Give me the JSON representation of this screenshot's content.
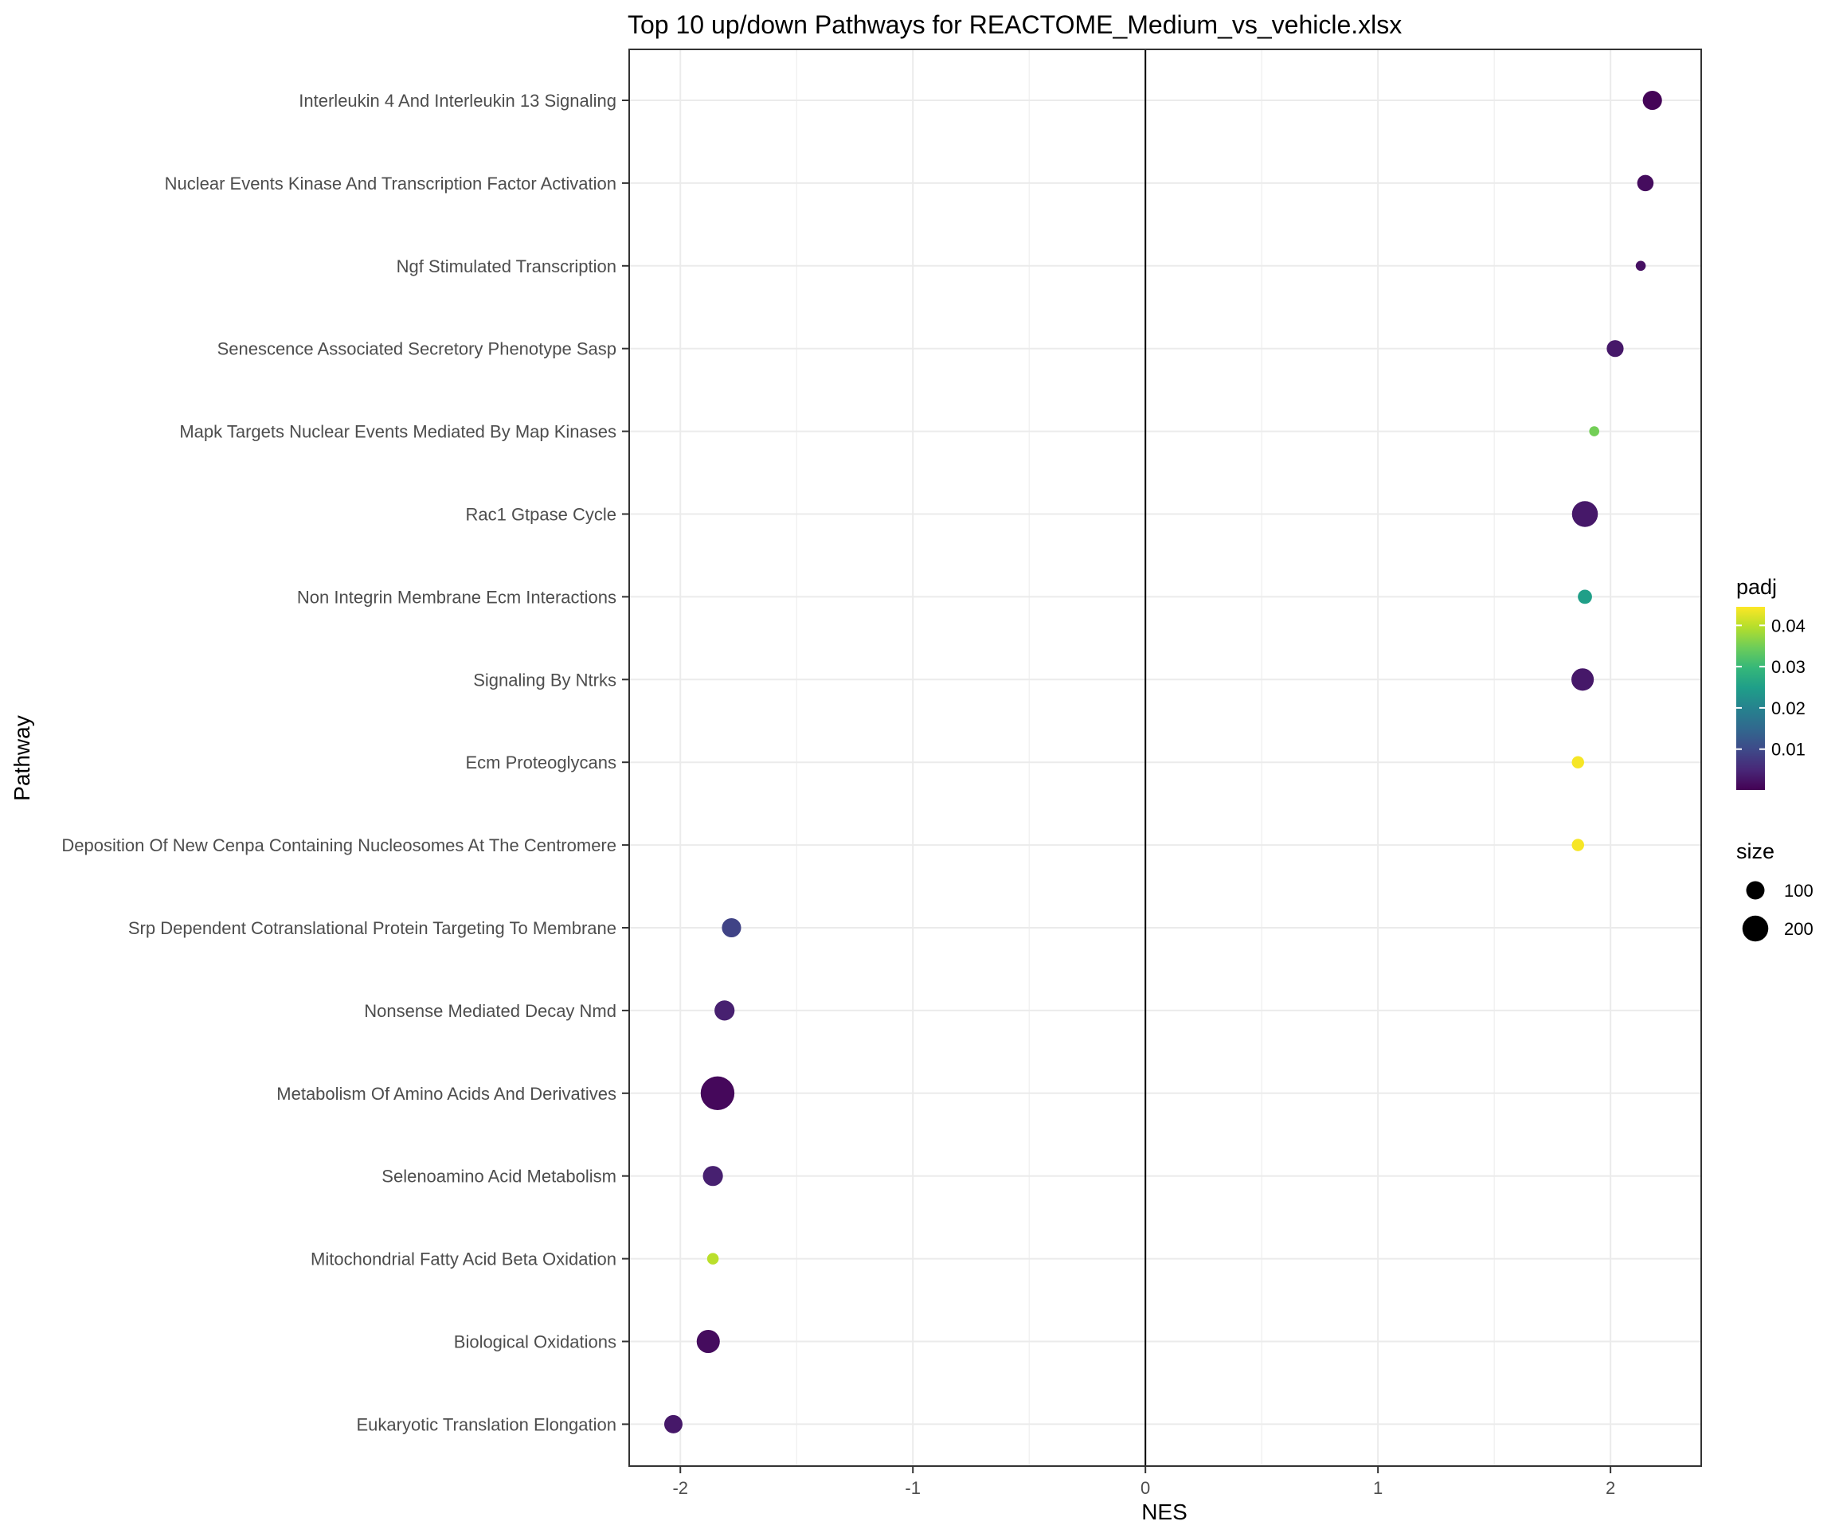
{
  "chart_data": {
    "type": "scatter",
    "title": "Top 10 up/down Pathways for  REACTOME_Medium_vs_vehicle.xlsx",
    "xlabel": "NES",
    "ylabel": "Pathway",
    "xlim": [
      -2.22,
      2.39
    ],
    "xticks": [
      "-2",
      "-1",
      "0",
      "1",
      "2"
    ],
    "xtick_values": [
      -2,
      -1,
      0,
      1,
      2
    ],
    "grid": true,
    "reference_line_x": 0,
    "points": [
      {
        "pathway": "Interleukin 4 And Interleukin 13 Signaling",
        "nes": 2.18,
        "padj": 0.0005,
        "size": 110
      },
      {
        "pathway": "Nuclear Events Kinase And Transcription Factor Activation",
        "nes": 2.15,
        "padj": 0.0015,
        "size": 80
      },
      {
        "pathway": "Ngf Stimulated Transcription",
        "nes": 2.13,
        "padj": 0.002,
        "size": 30
      },
      {
        "pathway": "Senescence Associated Secretory Phenotype Sasp",
        "nes": 2.02,
        "padj": 0.003,
        "size": 85
      },
      {
        "pathway": "Mapk Targets Nuclear Events Mediated By Map Kinases",
        "nes": 1.93,
        "padj": 0.035,
        "size": 30
      },
      {
        "pathway": "Rac1 Gtpase Cycle",
        "nes": 1.89,
        "padj": 0.003,
        "size": 200
      },
      {
        "pathway": "Non Integrin Membrane Ecm Interactions",
        "nes": 1.89,
        "padj": 0.025,
        "size": 60
      },
      {
        "pathway": "Signaling By Ntrks",
        "nes": 1.88,
        "padj": 0.003,
        "size": 150
      },
      {
        "pathway": "Ecm Proteoglycans",
        "nes": 1.86,
        "padj": 0.044,
        "size": 45
      },
      {
        "pathway": "Deposition Of New Cenpa Containing Nucleosomes At The Centromere",
        "nes": 1.86,
        "padj": 0.044,
        "size": 45
      },
      {
        "pathway": "Srp Dependent Cotranslational Protein Targeting To Membrane",
        "nes": -1.78,
        "padj": 0.009,
        "size": 110
      },
      {
        "pathway": "Nonsense Mediated Decay Nmd",
        "nes": -1.81,
        "padj": 0.004,
        "size": 120
      },
      {
        "pathway": "Metabolism Of Amino Acids And Derivatives",
        "nes": -1.84,
        "padj": 0.001,
        "size": 340
      },
      {
        "pathway": "Selenoamino Acid Metabolism",
        "nes": -1.86,
        "padj": 0.004,
        "size": 120
      },
      {
        "pathway": "Mitochondrial Fatty Acid Beta Oxidation",
        "nes": -1.86,
        "padj": 0.04,
        "size": 40
      },
      {
        "pathway": "Biological Oxidations",
        "nes": -1.88,
        "padj": 0.0015,
        "size": 160
      },
      {
        "pathway": "Eukaryotic Translation Elongation",
        "nes": -2.03,
        "padj": 0.003,
        "size": 100
      }
    ],
    "legend_position": "right",
    "color_legend": {
      "title": "padj",
      "range": [
        0.0001,
        0.0445
      ],
      "ticks": [
        0.01,
        0.02,
        0.03,
        0.04
      ],
      "tick_labels": [
        "0.01",
        "0.02",
        "0.03",
        "0.04"
      ]
    },
    "size_legend": {
      "title": "size",
      "entries": [
        {
          "label": "100",
          "value": 100
        },
        {
          "label": "200",
          "value": 200
        }
      ]
    },
    "viridis": [
      "#440154",
      "#482878",
      "#3E4A89",
      "#31688E",
      "#26828E",
      "#1F9E89",
      "#35B779",
      "#6DCD59",
      "#B4DE2C",
      "#FDE725"
    ]
  }
}
